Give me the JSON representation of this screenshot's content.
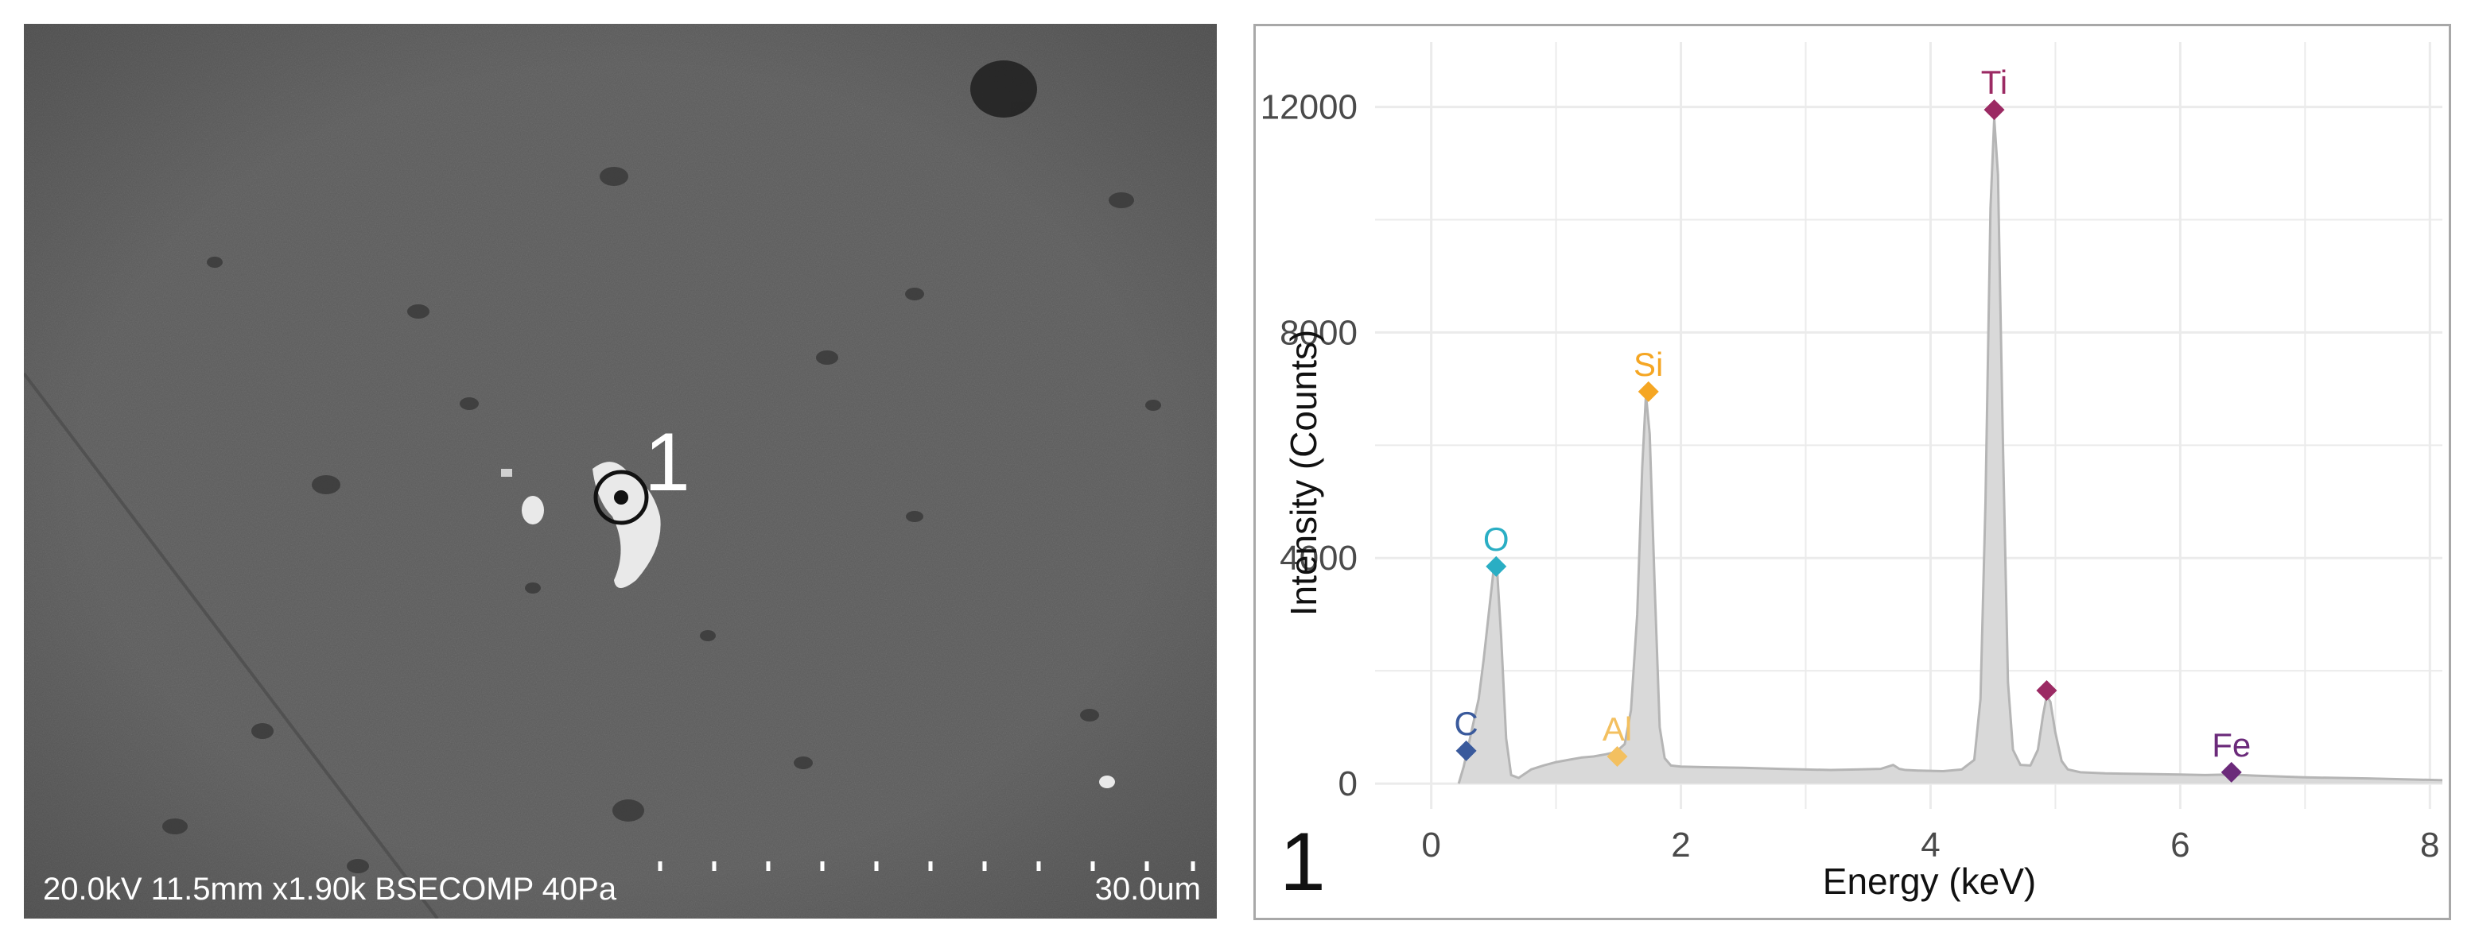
{
  "sem_image": {
    "info_text": "20.0kV 11.5mm x1.90k BSECOMP 40Pa",
    "scale_text": "30.0um",
    "spot_label": "1"
  },
  "panel_label": "1",
  "chart_data": {
    "type": "area",
    "xlabel": "Energy (keV)",
    "ylabel": "Intensity (Counts)",
    "xlim": [
      -0.45,
      8.1
    ],
    "ylim": [
      -450,
      13150
    ],
    "x_ticks": [
      0,
      2,
      4,
      6,
      8
    ],
    "y_ticks": [
      0,
      4000,
      8000,
      12000
    ],
    "grid": true,
    "fill_color": "#d9d9d9",
    "line_color": "#b5b5b5",
    "spectrum": {
      "x": [
        0.22,
        0.26,
        0.3,
        0.34,
        0.38,
        0.42,
        0.46,
        0.5,
        0.53,
        0.56,
        0.6,
        0.64,
        0.7,
        0.8,
        0.9,
        1.0,
        1.1,
        1.2,
        1.3,
        1.4,
        1.48,
        1.55,
        1.6,
        1.65,
        1.69,
        1.72,
        1.75,
        1.79,
        1.83,
        1.87,
        1.92,
        2.0,
        2.2,
        2.5,
        2.8,
        3.0,
        3.2,
        3.4,
        3.6,
        3.7,
        3.75,
        3.8,
        3.9,
        4.1,
        4.25,
        4.35,
        4.4,
        4.44,
        4.48,
        4.51,
        4.54,
        4.58,
        4.62,
        4.66,
        4.72,
        4.8,
        4.86,
        4.9,
        4.93,
        4.96,
        5.0,
        5.05,
        5.1,
        5.2,
        5.4,
        5.7,
        6.0,
        6.2,
        6.4,
        6.6,
        7.0,
        7.5,
        8.1
      ],
      "y": [
        0,
        300,
        700,
        1100,
        1500,
        2200,
        3000,
        3800,
        3700,
        2600,
        800,
        150,
        100,
        250,
        320,
        380,
        420,
        460,
        480,
        520,
        560,
        700,
        1300,
        3000,
        5600,
        6900,
        6200,
        3500,
        1000,
        450,
        320,
        300,
        290,
        280,
        260,
        250,
        240,
        250,
        260,
        330,
        260,
        240,
        230,
        220,
        250,
        420,
        1500,
        5000,
        10200,
        11800,
        10800,
        6000,
        1800,
        600,
        330,
        320,
        600,
        1200,
        1550,
        1450,
        900,
        400,
        250,
        200,
        180,
        170,
        160,
        150,
        160,
        140,
        110,
        90,
        60
      ]
    },
    "peaks": [
      {
        "label": "C",
        "x": 0.28,
        "y": 580,
        "color": "#3a5a9c"
      },
      {
        "label": "O",
        "x": 0.52,
        "y": 3850,
        "color": "#2aaec4"
      },
      {
        "label": "Al",
        "x": 1.49,
        "y": 480,
        "color": "#f3c060"
      },
      {
        "label": "Si",
        "x": 1.74,
        "y": 6950,
        "color": "#f5a623"
      },
      {
        "label": "Ti",
        "x": 4.51,
        "y": 11950,
        "color": "#9b2a63"
      },
      {
        "label": "",
        "x": 4.93,
        "y": 1650,
        "color": "#9b2a63"
      },
      {
        "label": "Fe",
        "x": 6.41,
        "y": 200,
        "color": "#6b2a7a"
      }
    ]
  }
}
